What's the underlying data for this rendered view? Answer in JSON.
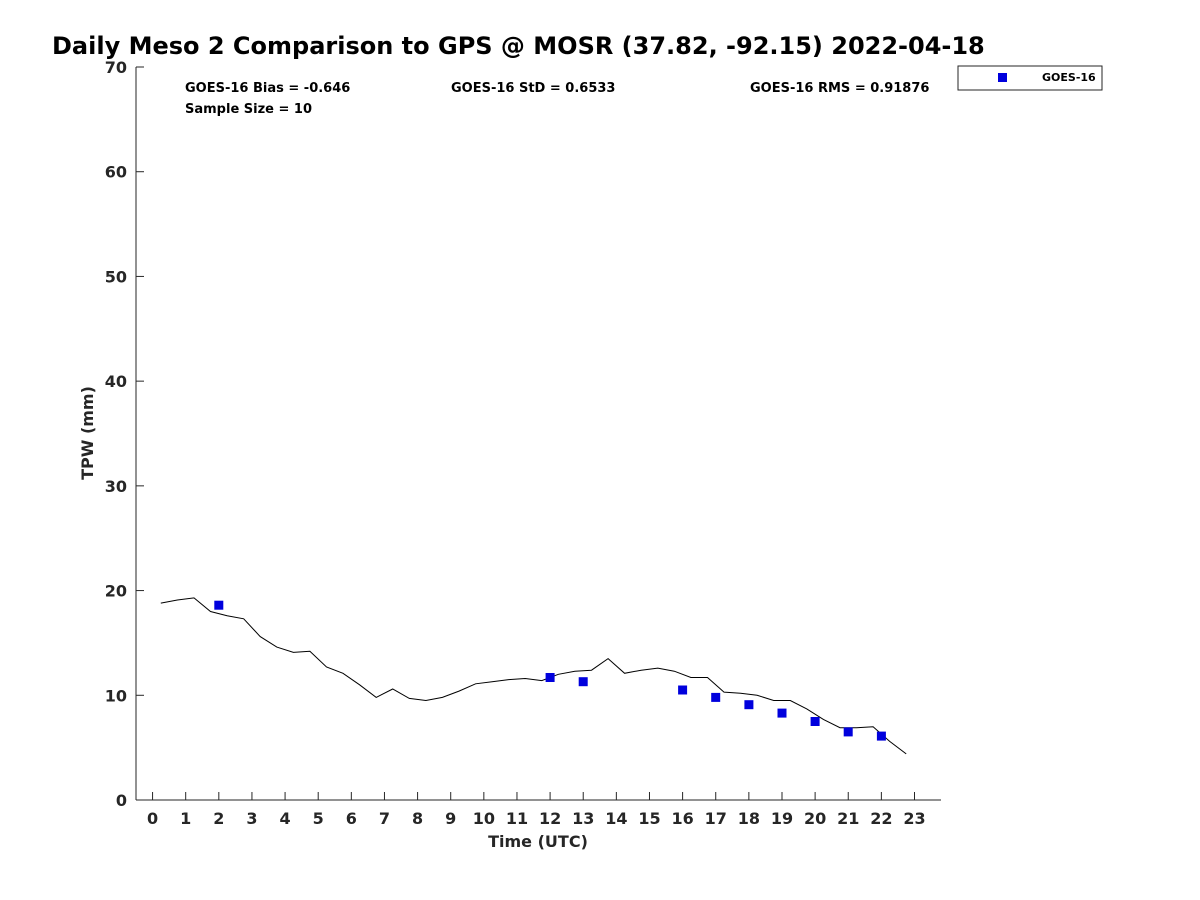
{
  "chart_data": {
    "type": "scatter",
    "title": "Daily Meso 2 Comparison to GPS @ MOSR (37.82, -92.15) 2022-04-18",
    "xlabel": "Time (UTC)",
    "ylabel": "TPW (mm)",
    "xlim": [
      -0.5,
      23.8
    ],
    "ylim": [
      0,
      70
    ],
    "x_ticks": [
      "0",
      "1",
      "2",
      "3",
      "4",
      "5",
      "6",
      "7",
      "8",
      "9",
      "10",
      "11",
      "12",
      "13",
      "14",
      "15",
      "16",
      "17",
      "18",
      "19",
      "20",
      "21",
      "22",
      "23"
    ],
    "y_ticks": [
      "0",
      "10",
      "20",
      "30",
      "40",
      "50",
      "60",
      "70"
    ],
    "grid": false,
    "legend_position": "top-right, outside plot",
    "stats": {
      "bias": "GOES-16 Bias = -0.646",
      "std": "GOES-16 StD = 0.6533",
      "rms": "GOES-16 RMS = 0.91876",
      "sample": "Sample Size = 10"
    },
    "series": [
      {
        "name": "GPS",
        "style": "line",
        "color": "#000000",
        "x": [
          0.25,
          0.75,
          1.25,
          1.75,
          2.25,
          2.75,
          3.25,
          3.75,
          4.25,
          4.75,
          5.25,
          5.75,
          6.25,
          6.75,
          7.25,
          7.75,
          8.25,
          8.75,
          9.25,
          9.75,
          10.25,
          10.75,
          11.25,
          11.75,
          12.25,
          12.75,
          13.25,
          13.75,
          14.25,
          14.75,
          15.25,
          15.75,
          16.25,
          16.75,
          17.25,
          17.75,
          18.25,
          18.75,
          19.25,
          19.75,
          20.25,
          20.75,
          21.25,
          21.75,
          22.25,
          22.75
        ],
        "y": [
          18.8,
          19.1,
          19.3,
          18.0,
          17.6,
          17.3,
          15.6,
          14.6,
          14.1,
          14.2,
          12.7,
          12.1,
          11.0,
          9.8,
          10.6,
          9.7,
          9.5,
          9.8,
          10.4,
          11.1,
          11.3,
          11.5,
          11.6,
          11.4,
          12.0,
          12.3,
          12.4,
          13.5,
          12.1,
          12.4,
          12.6,
          12.3,
          11.7,
          11.7,
          10.3,
          10.2,
          10.0,
          9.5,
          9.5,
          8.7,
          7.7,
          6.9,
          6.9,
          7.0,
          5.6,
          4.4
        ]
      },
      {
        "name": "GOES-16",
        "style": "marker",
        "color": "#0000dd",
        "x": [
          2,
          12,
          13,
          16,
          17,
          18,
          19,
          20,
          21,
          22
        ],
        "y": [
          18.6,
          11.7,
          11.3,
          10.5,
          9.8,
          9.1,
          8.3,
          7.5,
          6.5,
          6.1
        ]
      }
    ]
  }
}
